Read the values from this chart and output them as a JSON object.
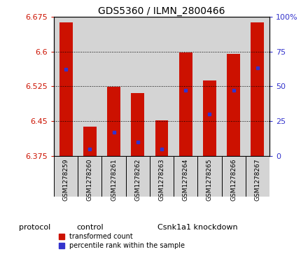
{
  "title": "GDS5360 / ILMN_2800466",
  "samples": [
    "GSM1278259",
    "GSM1278260",
    "GSM1278261",
    "GSM1278262",
    "GSM1278263",
    "GSM1278264",
    "GSM1278265",
    "GSM1278266",
    "GSM1278267"
  ],
  "transformed_counts": [
    6.663,
    6.438,
    6.524,
    6.51,
    6.452,
    6.598,
    6.537,
    6.595,
    6.662
  ],
  "percentile_ranks": [
    62,
    5,
    17,
    10,
    5,
    47,
    30,
    47,
    63
  ],
  "ymin": 6.375,
  "ymax": 6.675,
  "yticks": [
    6.375,
    6.45,
    6.525,
    6.6,
    6.675
  ],
  "right_yticks": [
    0,
    25,
    50,
    75,
    100
  ],
  "bar_color": "#cc1100",
  "blue_color": "#3333cc",
  "group_color": "#7FCC7F",
  "groups": [
    {
      "label": "control",
      "start": 0,
      "end": 3
    },
    {
      "label": "Csnk1a1 knockdown",
      "start": 3,
      "end": 9
    }
  ],
  "protocol_label": "protocol",
  "legend_items": [
    {
      "label": "transformed count",
      "color": "#cc1100"
    },
    {
      "label": "percentile rank within the sample",
      "color": "#3333cc"
    }
  ],
  "bar_width": 0.55,
  "figure_bg": "#ffffff",
  "sample_box_bg": "#d4d4d4",
  "grid_color": "#000000",
  "tick_color_left": "#cc1100",
  "tick_color_right": "#3333cc",
  "title_fontsize": 10,
  "tick_fontsize": 8,
  "label_fontsize": 7,
  "sample_fontsize": 6.5
}
